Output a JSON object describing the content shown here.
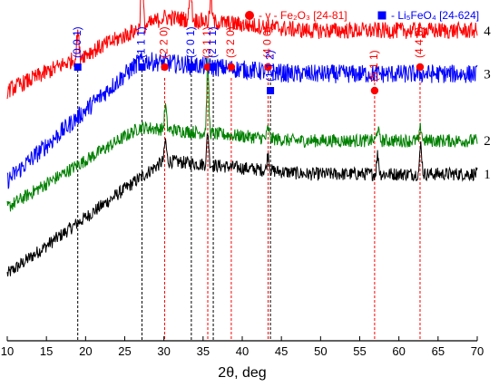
{
  "chart_data": {
    "type": "line",
    "title": "",
    "xlabel": "2θ, deg",
    "ylabel": "",
    "xlim": [
      10,
      70
    ],
    "x_ticks": [
      10,
      15,
      20,
      25,
      30,
      35,
      40,
      45,
      50,
      55,
      60,
      65,
      70
    ],
    "legend": [
      {
        "marker": "circle",
        "color": "#ff0000",
        "text": "- γ - Fe₂O₃ [24-81]"
      },
      {
        "marker": "square",
        "color": "#0000ff",
        "text": "- Li₅FeO₄ [24-624]"
      }
    ],
    "series": [
      {
        "name": "1",
        "color": "#000000",
        "base_start": 0.2,
        "rise_peak": 30,
        "plateau": 0.5,
        "noise": 0.02,
        "peaks": [
          [
            30.2,
            0.06
          ],
          [
            35.6,
            0.1
          ],
          [
            43.3,
            0.05
          ],
          [
            57.3,
            0.06
          ],
          [
            62.8,
            0.09
          ]
        ]
      },
      {
        "name": "2",
        "color": "#008000",
        "base_start": 0.4,
        "rise_peak": 27,
        "plateau": 0.6,
        "noise": 0.02,
        "peaks": [
          [
            30.2,
            0.07
          ],
          [
            35.6,
            0.21
          ],
          [
            43.3,
            0.03
          ],
          [
            57.3,
            0.04
          ],
          [
            62.8,
            0.04
          ]
        ]
      },
      {
        "name": "3",
        "color": "#0000ff",
        "base_start": 0.48,
        "rise_peak": 27,
        "plateau": 0.8,
        "noise": 0.028,
        "peaks": []
      },
      {
        "name": "4",
        "color": "#ff0000",
        "base_start": 0.75,
        "rise_peak": 30,
        "plateau": 0.93,
        "noise": 0.025,
        "peaks": [
          [
            19.0,
            0.08
          ],
          [
            27.2,
            0.24
          ],
          [
            33.4,
            0.12
          ],
          [
            36.0,
            0.07
          ]
        ]
      }
    ],
    "reference_lines": [
      {
        "x": 19.0,
        "phase": "Li5FeO4",
        "hkl": "(0 0 1)",
        "color": "#0000ff",
        "label_pos": "high"
      },
      {
        "x": 27.2,
        "phase": "Li5FeO4",
        "hkl": "(1 1 1)",
        "color": "#0000ff",
        "label_pos": "high"
      },
      {
        "x": 30.1,
        "phase": "gamma-Fe2O3",
        "hkl": "(2 2 0)",
        "color": "#ff0000",
        "label_pos": "mid"
      },
      {
        "x": 33.5,
        "phase": "Li5FeO4",
        "hkl": "(2 0 1)",
        "color": "#0000ff",
        "label_pos": "high"
      },
      {
        "x": 35.6,
        "phase": "gamma-Fe2O3",
        "hkl": "(3 1 1)",
        "color": "#ff0000",
        "label_pos": "mid"
      },
      {
        "x": 36.3,
        "phase": "Li5FeO4",
        "hkl": "(2 1 1)",
        "color": "#0000ff",
        "label_pos": "high"
      },
      {
        "x": 38.6,
        "phase": "gamma-Fe2O3",
        "hkl": "(3 2 0)",
        "color": "#ff0000",
        "label_pos": "mid"
      },
      {
        "x": 43.3,
        "phase": "gamma-Fe2O3",
        "hkl": "(4 0 0)",
        "color": "#ff0000",
        "label_pos": "mid"
      },
      {
        "x": 43.6,
        "phase": "Li5FeO4",
        "hkl": "(1 1 2)",
        "color": "#0000ff",
        "label_pos": "low"
      },
      {
        "x": 56.9,
        "phase": "gamma-Fe2O3",
        "hkl": "(5 1 1)",
        "color": "#ff0000",
        "label_pos": "low"
      },
      {
        "x": 62.7,
        "phase": "gamma-Fe2O3",
        "hkl": "(4 4 0)",
        "color": "#ff0000",
        "label_pos": "mid"
      }
    ],
    "grid": false
  }
}
